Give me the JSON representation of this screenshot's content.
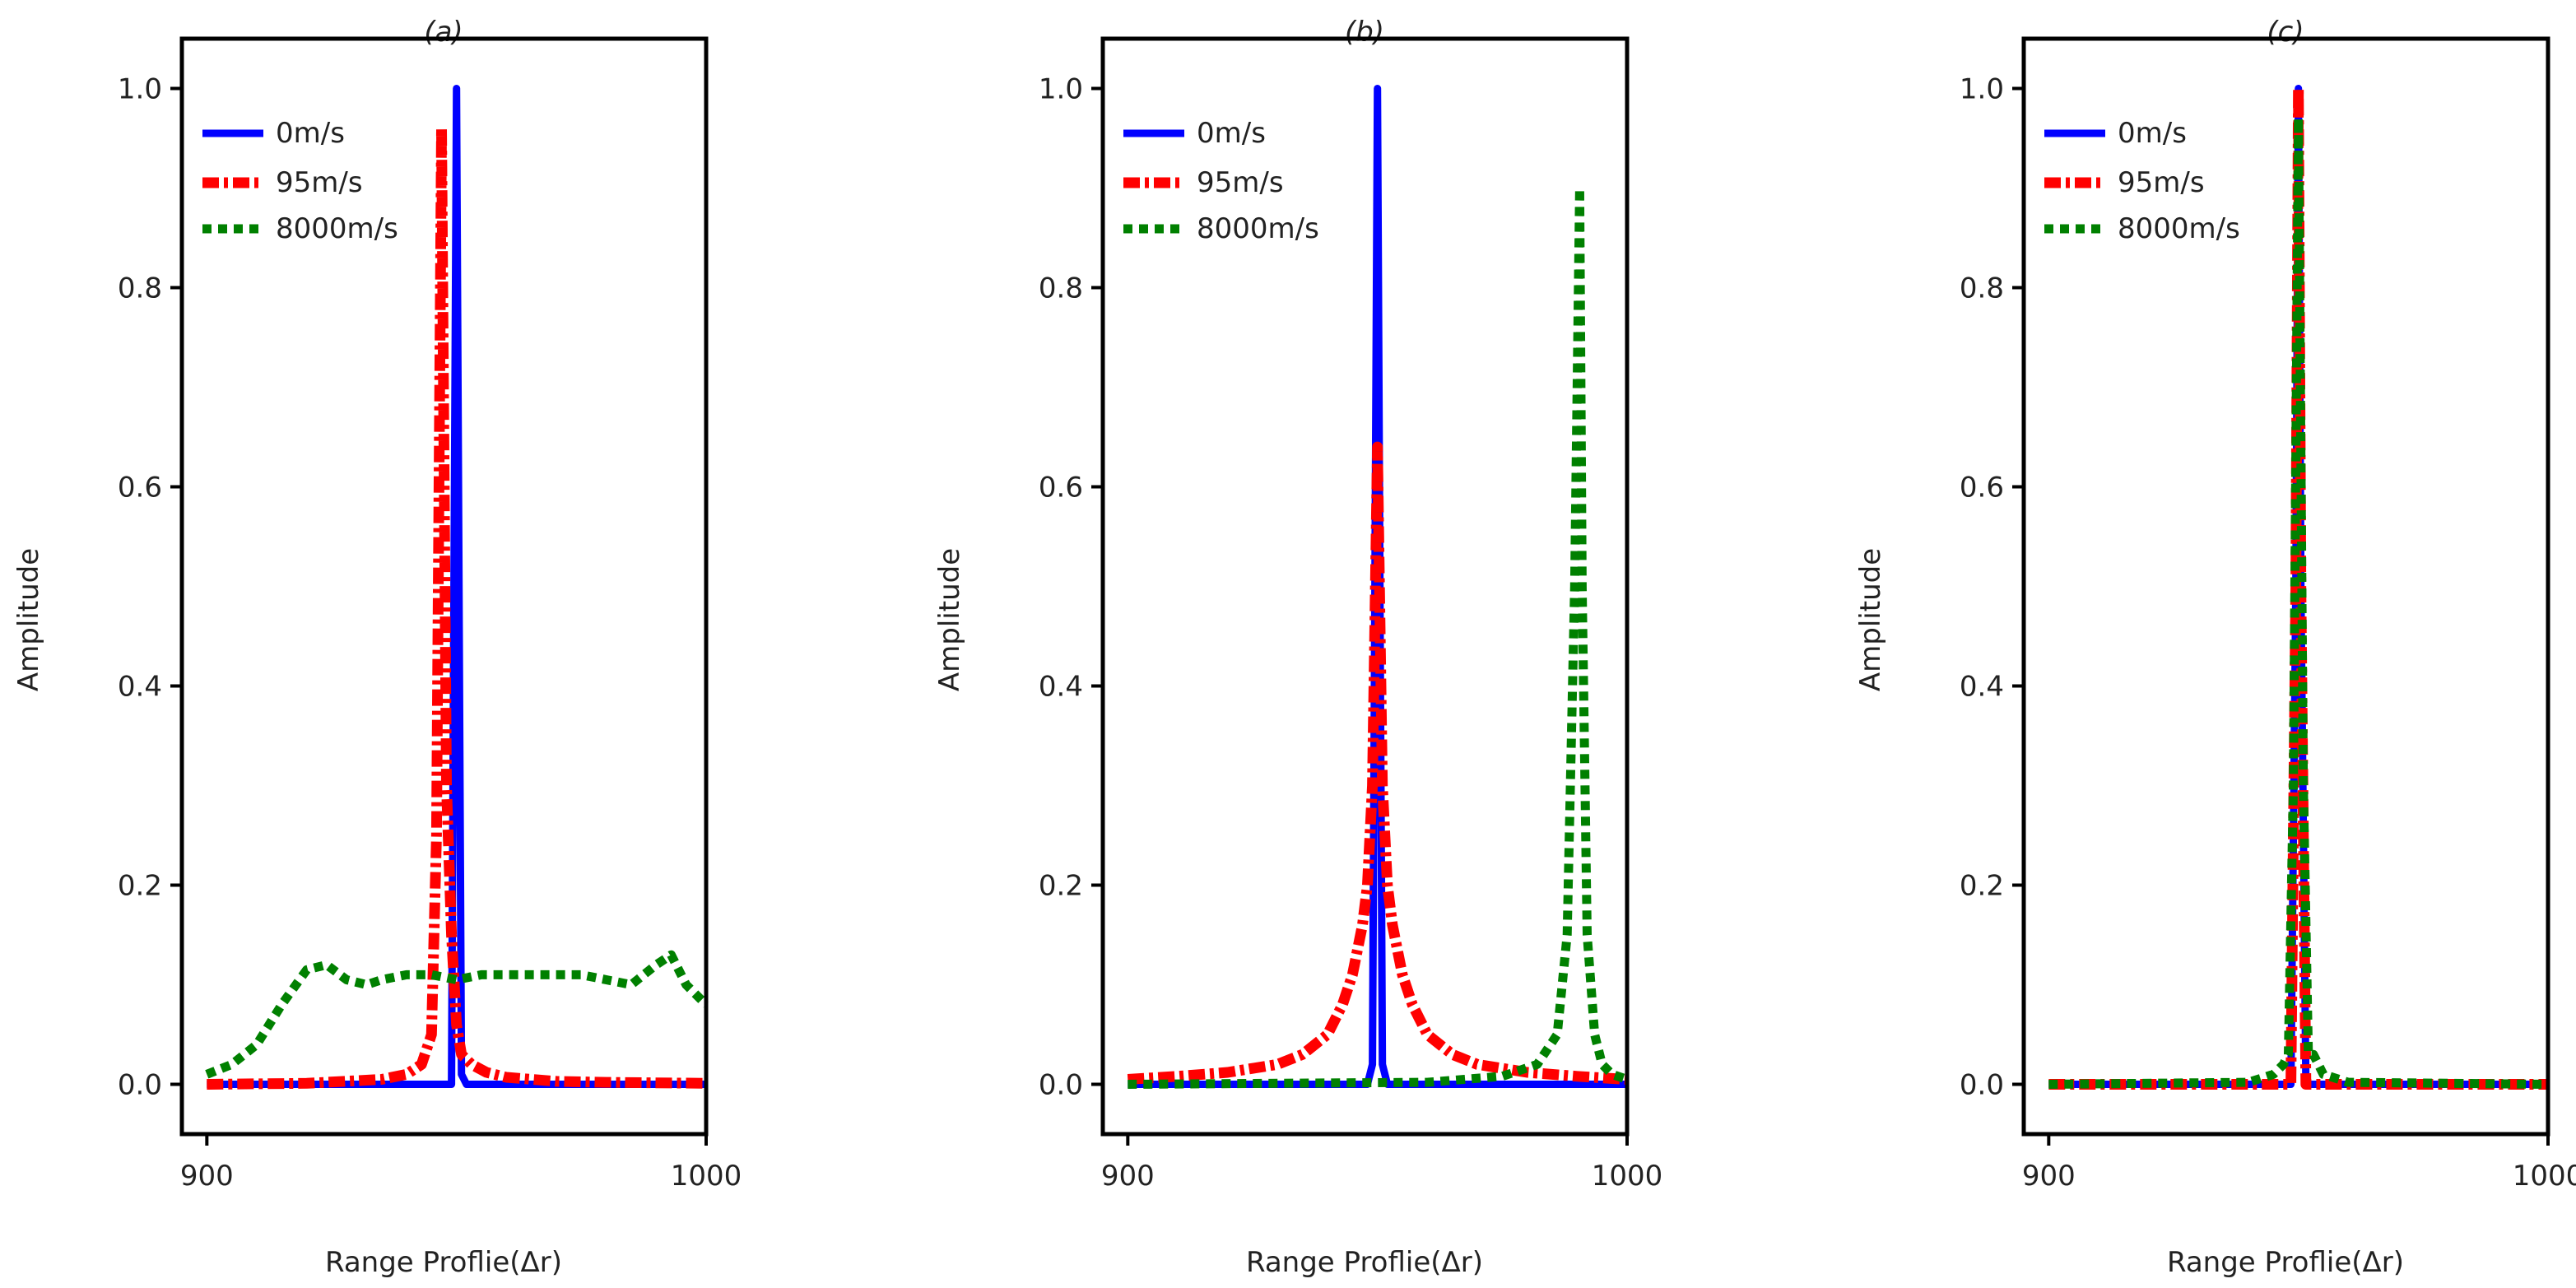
{
  "chart_data": [
    {
      "type": "line",
      "title": "(a)",
      "xlabel": "Range Proflie(Δr)",
      "ylabel": "Amplitude",
      "xlim": [
        895,
        1000
      ],
      "ylim": [
        -0.05,
        1.05
      ],
      "xticks": [
        900,
        1000
      ],
      "yticks": [
        0.0,
        0.2,
        0.4,
        0.6,
        0.8,
        1.0
      ],
      "legend_position": "top-left",
      "series": [
        {
          "name": "0m/s",
          "color": "#0000ff",
          "style": "solid",
          "x": [
            900,
            945,
            948,
            949,
            949.5,
            950,
            950.5,
            951,
            952,
            955,
            1000
          ],
          "y": [
            0,
            0,
            0,
            0,
            0.5,
            1.0,
            0.5,
            0.01,
            0,
            0,
            0
          ]
        },
        {
          "name": "95m/s",
          "color": "#ff0000",
          "style": "dashdot",
          "x": [
            900,
            920,
            935,
            940,
            943,
            945,
            946,
            947,
            948,
            949,
            950,
            951,
            953,
            956,
            960,
            970,
            980,
            1000
          ],
          "y": [
            0.0,
            0.001,
            0.005,
            0.01,
            0.02,
            0.05,
            0.25,
            0.96,
            0.3,
            0.15,
            0.06,
            0.03,
            0.02,
            0.012,
            0.007,
            0.003,
            0.002,
            0.001
          ]
        },
        {
          "name": "8000m/s",
          "color": "#008000",
          "style": "dotted",
          "x": [
            900,
            905,
            910,
            915,
            920,
            924,
            928,
            932,
            935,
            940,
            945,
            950,
            955,
            960,
            965,
            970,
            975,
            980,
            985,
            990,
            993,
            996,
            1000
          ],
          "y": [
            0.01,
            0.02,
            0.04,
            0.08,
            0.115,
            0.12,
            0.105,
            0.1,
            0.105,
            0.11,
            0.11,
            0.105,
            0.11,
            0.11,
            0.11,
            0.11,
            0.11,
            0.105,
            0.1,
            0.12,
            0.13,
            0.1,
            0.08
          ]
        }
      ],
      "legend": [
        "0m/s",
        "95m/s",
        "8000m/s"
      ]
    },
    {
      "type": "line",
      "title": "(b)",
      "xlabel": "Range Proflie(Δr)",
      "ylabel": "Amplitude",
      "xlim": [
        895,
        1000
      ],
      "ylim": [
        -0.05,
        1.05
      ],
      "xticks": [
        900,
        1000
      ],
      "yticks": [
        0.0,
        0.2,
        0.4,
        0.6,
        0.8,
        1.0
      ],
      "legend_position": "top-left",
      "series": [
        {
          "name": "0m/s",
          "color": "#0000ff",
          "style": "solid",
          "x": [
            900,
            948,
            949,
            949.5,
            950,
            950.5,
            951,
            952,
            1000
          ],
          "y": [
            0,
            0,
            0.02,
            0.5,
            1.0,
            0.5,
            0.02,
            0,
            0
          ]
        },
        {
          "name": "95m/s",
          "color": "#ff0000",
          "style": "dashdot",
          "x": [
            900,
            910,
            920,
            930,
            935,
            940,
            943,
            945,
            947,
            948,
            949,
            950,
            951,
            952,
            953,
            955,
            957,
            960,
            965,
            970,
            980,
            990,
            1000
          ],
          "y": [
            0.005,
            0.008,
            0.012,
            0.02,
            0.03,
            0.05,
            0.08,
            0.11,
            0.16,
            0.2,
            0.3,
            0.64,
            0.3,
            0.2,
            0.16,
            0.11,
            0.08,
            0.05,
            0.03,
            0.02,
            0.012,
            0.008,
            0.005
          ]
        },
        {
          "name": "8000m/s",
          "color": "#008000",
          "style": "dotted",
          "x": [
            900,
            960,
            975,
            982,
            986,
            988,
            989.5,
            990.5,
            991,
            992,
            993.5,
            995,
            997,
            1000
          ],
          "y": [
            0.0,
            0.002,
            0.008,
            0.02,
            0.05,
            0.15,
            0.5,
            0.9,
            0.5,
            0.15,
            0.05,
            0.02,
            0.01,
            0.005
          ]
        }
      ],
      "legend": [
        "0m/s",
        "95m/s",
        "8000m/s"
      ]
    },
    {
      "type": "line",
      "title": "(c)",
      "xlabel": "Range Proflie(Δr)",
      "ylabel": "Amplitude",
      "xlim": [
        895,
        1000
      ],
      "ylim": [
        -0.05,
        1.05
      ],
      "xticks": [
        900,
        1000
      ],
      "yticks": [
        0.0,
        0.2,
        0.4,
        0.6,
        0.8,
        1.0
      ],
      "legend_position": "top-left",
      "series": [
        {
          "name": "0m/s",
          "color": "#0000ff",
          "style": "solid",
          "x": [
            900,
            948.5,
            949.5,
            950,
            950.5,
            951.5,
            1000
          ],
          "y": [
            0,
            0,
            0.5,
            1.0,
            0.5,
            0,
            0
          ]
        },
        {
          "name": "95m/s",
          "color": "#ff0000",
          "style": "dashdot",
          "x": [
            900,
            948.5,
            949.5,
            950,
            950.5,
            951.5,
            1000
          ],
          "y": [
            0,
            0,
            0.5,
            1.0,
            0.5,
            0,
            0
          ]
        },
        {
          "name": "8000m/s",
          "color": "#008000",
          "style": "dotted",
          "x": [
            900,
            940,
            945,
            947,
            948,
            949,
            950,
            951,
            952,
            953,
            955,
            960,
            1000
          ],
          "y": [
            0,
            0.002,
            0.01,
            0.02,
            0.03,
            0.3,
            0.97,
            0.3,
            0.03,
            0.03,
            0.01,
            0.002,
            0
          ]
        }
      ],
      "legend": [
        "0m/s",
        "95m/s",
        "8000m/s"
      ]
    }
  ]
}
